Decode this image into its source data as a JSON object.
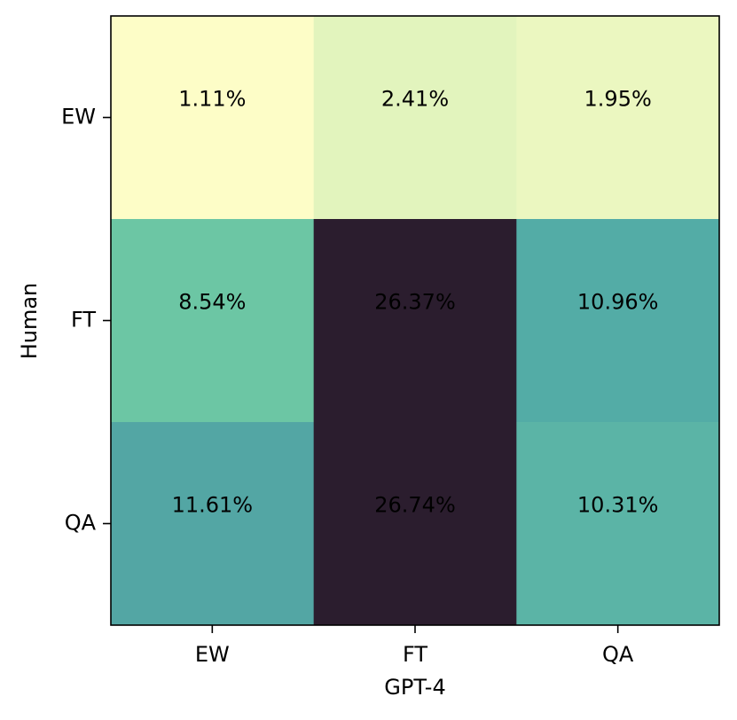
{
  "chart_data": {
    "type": "heatmap",
    "xlabel": "GPT-4",
    "ylabel": "Human",
    "x_categories": [
      "EW",
      "FT",
      "QA"
    ],
    "y_categories": [
      "EW",
      "FT",
      "QA"
    ],
    "values": [
      [
        1.11,
        2.41,
        1.95
      ],
      [
        8.54,
        26.37,
        10.96
      ],
      [
        11.61,
        26.74,
        10.31
      ]
    ],
    "value_labels": [
      [
        "1.11%",
        "2.41%",
        "1.95%"
      ],
      [
        "8.54%",
        "26.37%",
        "10.96%"
      ],
      [
        "11.61%",
        "26.74%",
        "10.31%"
      ]
    ],
    "cell_colors": [
      [
        "#fdfdc7",
        "#e2f4bd",
        "#ebf7c0"
      ],
      [
        "#6cc6a4",
        "#2b1d2e",
        "#53aca6"
      ],
      [
        "#53a6a4",
        "#2b1d2e",
        "#5bb4a6"
      ]
    ],
    "grid": false,
    "colorbar": false
  }
}
